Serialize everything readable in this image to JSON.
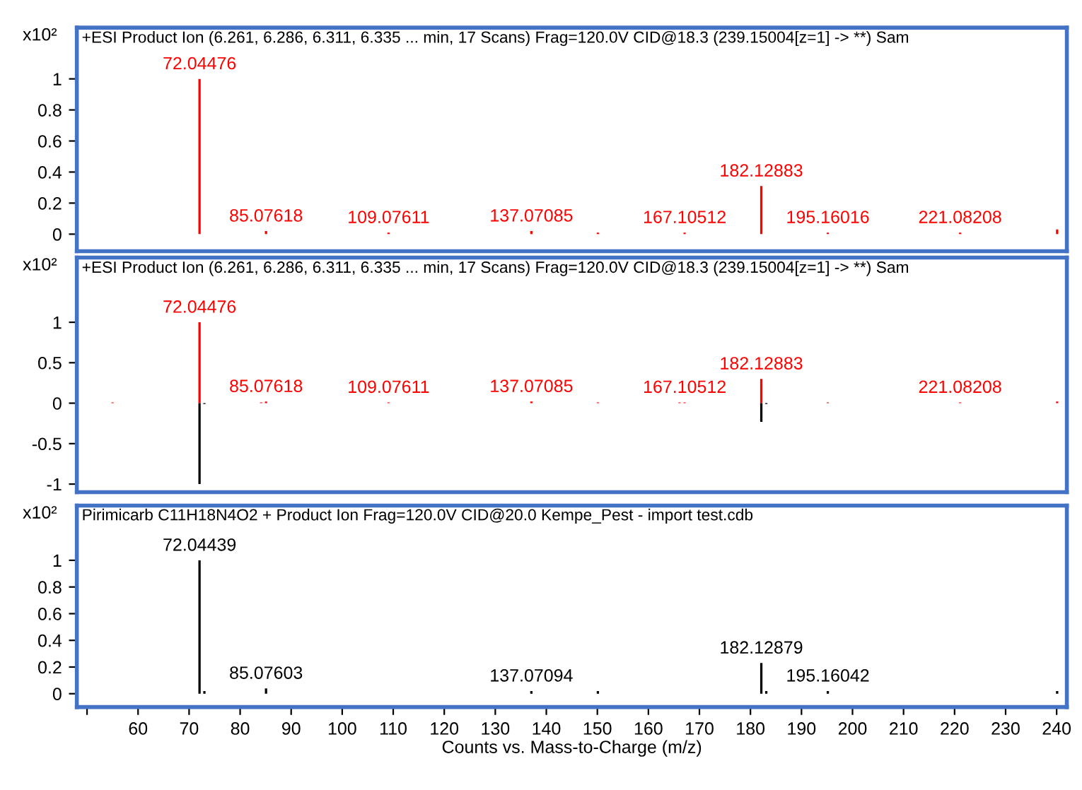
{
  "chart_data": [
    {
      "type": "bar",
      "title": "+ESI Product Ion (6.261, 6.286, 6.311, 6.335 ... min, 17 Scans) Frag=120.0V CID@18.3 (239.15004[z=1] -> **) Sam",
      "ylabel": "x10²",
      "xlim": [
        48,
        242
      ],
      "ylim": [
        -0.11,
        1.33
      ],
      "yticks": [
        0,
        0.2,
        0.4,
        0.6,
        0.8,
        1
      ],
      "tick_labels": "y",
      "grid": false,
      "legend": false,
      "series": [
        {
          "color": "#ff0000",
          "x": [
            72.04476,
            85.07618,
            109.07611,
            137.07085,
            150.1,
            167.10512,
            182.12883,
            195.16016,
            221.08208,
            240.1
          ],
          "values": [
            1.0,
            0.02,
            0.01,
            0.02,
            0.01,
            0.01,
            0.31,
            0.01,
            0.01,
            0.03
          ]
        }
      ],
      "annotations": [
        {
          "text": "72.04476",
          "x": 72.04476,
          "y": 1.0
        },
        {
          "text": "85.07618",
          "x": 85.07618,
          "y": 0.02
        },
        {
          "text": "109.07611",
          "x": 109.07611,
          "y": 0.01
        },
        {
          "text": "137.07085",
          "x": 137.07085,
          "y": 0.02
        },
        {
          "text": "167.10512",
          "x": 167.10512,
          "y": 0.01
        },
        {
          "text": "182.12883",
          "x": 182.12883,
          "y": 0.31
        },
        {
          "text": "195.16016",
          "x": 195.16016,
          "y": 0.01
        },
        {
          "text": "221.08208",
          "x": 221.08208,
          "y": 0.01
        }
      ]
    },
    {
      "type": "bar",
      "title": "+ESI Product Ion (6.261, 6.286, 6.311, 6.335 ... min, 17 Scans) Frag=120.0V CID@18.3 (239.15004[z=1] -> **) Sam",
      "ylabel": "x10²",
      "xlim": [
        48,
        242
      ],
      "ylim": [
        -1.1,
        1.8
      ],
      "yticks": [
        -1,
        -0.5,
        0,
        0.5,
        1
      ],
      "tick_labels": "y",
      "grid": false,
      "legend": false,
      "series": [
        {
          "color": "#ff0000",
          "x": [
            55.0,
            72.04476,
            84.1,
            85.07618,
            109.07611,
            137.07085,
            150.1,
            166.1,
            167.10512,
            182.12883,
            195.16016,
            221.08208,
            240.1
          ],
          "values": [
            0.01,
            1.0,
            0.01,
            0.02,
            0.01,
            0.02,
            0.01,
            0.01,
            0.01,
            0.3,
            0.01,
            0.01,
            0.02
          ]
        },
        {
          "color": "#000000",
          "x": [
            72.04439,
            73.0,
            182.12879,
            183.1
          ],
          "values": [
            -1.0,
            -0.01,
            -0.23,
            -0.01
          ]
        }
      ],
      "annotations": [
        {
          "text": "72.04476",
          "x": 72.04476,
          "y": 1.0
        },
        {
          "text": "85.07618",
          "x": 85.07618,
          "y": 0.02
        },
        {
          "text": "109.07611",
          "x": 109.07611,
          "y": 0.01
        },
        {
          "text": "137.07085",
          "x": 137.07085,
          "y": 0.02
        },
        {
          "text": "167.10512",
          "x": 167.10512,
          "y": 0.01
        },
        {
          "text": "182.12883",
          "x": 182.12883,
          "y": 0.3
        },
        {
          "text": "221.08208",
          "x": 221.08208,
          "y": 0.01
        }
      ]
    },
    {
      "type": "bar",
      "title": "Pirimicarb C11H18N4O2 + Product Ion Frag=120.0V CID@20.0 Kempe_Pest - import test.cdb",
      "ylabel": "x10²",
      "xlabel": "Counts vs. Mass-to-Charge (m/z)",
      "xlim": [
        48,
        242
      ],
      "xticks": [
        {
          "value": 50,
          "label": null
        },
        60,
        70,
        80,
        90,
        100,
        110,
        120,
        130,
        140,
        150,
        160,
        170,
        180,
        190,
        200,
        210,
        220,
        230,
        240
      ],
      "ylim": [
        -0.1,
        1.41
      ],
      "yticks": [
        0,
        0.2,
        0.4,
        0.6,
        0.8,
        1
      ],
      "grid": false,
      "legend": false,
      "series": [
        {
          "color": "#000000",
          "x": [
            72.04439,
            73.0,
            85.07603,
            137.07094,
            150.1,
            182.12879,
            183.1,
            195.16042,
            240.1
          ],
          "values": [
            1.0,
            0.02,
            0.04,
            0.02,
            0.02,
            0.23,
            0.02,
            0.02,
            0.02
          ]
        }
      ],
      "annotations": [
        {
          "text": "72.04439",
          "x": 72.04439,
          "y": 1.0
        },
        {
          "text": "85.07603",
          "x": 85.07603,
          "y": 0.04
        },
        {
          "text": "137.07094",
          "x": 137.07094,
          "y": 0.02
        },
        {
          "text": "182.12879",
          "x": 182.12879,
          "y": 0.23
        },
        {
          "text": "195.16042",
          "x": 195.16042,
          "y": 0.02
        }
      ]
    }
  ]
}
